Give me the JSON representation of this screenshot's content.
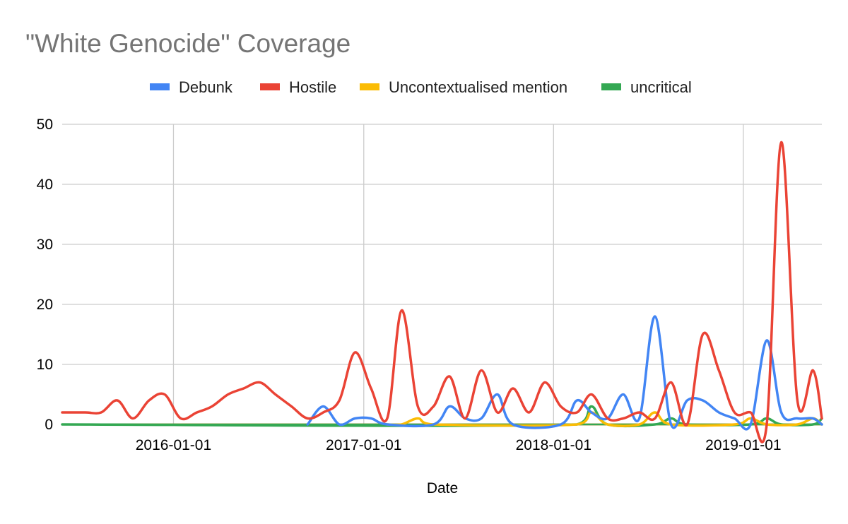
{
  "chart_data": {
    "type": "line",
    "title": "\"White Genocide\" Coverage",
    "xlabel": "Date",
    "ylabel": "",
    "ylim": [
      0,
      50
    ],
    "xlim": [
      "2015-06-01",
      "2019-06-01"
    ],
    "yticks": [
      0,
      10,
      20,
      30,
      40,
      50
    ],
    "xticks": [
      "2016-01-01",
      "2017-01-01",
      "2018-01-01",
      "2019-01-01"
    ],
    "grid": true,
    "legend_position": "top",
    "series": [
      {
        "name": "Debunk",
        "color": "#4285f4",
        "points": [
          [
            "2016-09-15",
            0
          ],
          [
            "2016-10-15",
            3
          ],
          [
            "2016-11-15",
            0
          ],
          [
            "2016-12-15",
            1
          ],
          [
            "2017-01-15",
            1
          ],
          [
            "2017-02-15",
            0
          ],
          [
            "2017-05-15",
            0
          ],
          [
            "2017-06-15",
            3
          ],
          [
            "2017-07-15",
            1
          ],
          [
            "2017-08-15",
            1
          ],
          [
            "2017-09-15",
            5
          ],
          [
            "2017-10-15",
            0
          ],
          [
            "2018-01-15",
            0
          ],
          [
            "2018-02-15",
            4
          ],
          [
            "2018-03-15",
            2
          ],
          [
            "2018-04-15",
            1
          ],
          [
            "2018-05-15",
            5
          ],
          [
            "2018-06-15",
            1
          ],
          [
            "2018-07-15",
            18
          ],
          [
            "2018-08-15",
            0
          ],
          [
            "2018-09-15",
            4
          ],
          [
            "2018-10-15",
            4
          ],
          [
            "2018-11-15",
            2
          ],
          [
            "2018-12-15",
            1
          ],
          [
            "2019-01-15",
            0
          ],
          [
            "2019-02-15",
            14
          ],
          [
            "2019-03-15",
            2
          ],
          [
            "2019-04-15",
            1
          ],
          [
            "2019-05-15",
            1
          ],
          [
            "2019-06-01",
            0
          ]
        ]
      },
      {
        "name": "Hostile",
        "color": "#ea4335",
        "points": [
          [
            "2015-06-01",
            2
          ],
          [
            "2015-07-15",
            2
          ],
          [
            "2015-08-15",
            2
          ],
          [
            "2015-09-15",
            4
          ],
          [
            "2015-10-15",
            1
          ],
          [
            "2015-11-15",
            4
          ],
          [
            "2015-12-15",
            5
          ],
          [
            "2016-01-15",
            1
          ],
          [
            "2016-02-15",
            2
          ],
          [
            "2016-03-15",
            3
          ],
          [
            "2016-04-15",
            5
          ],
          [
            "2016-05-15",
            6
          ],
          [
            "2016-06-15",
            7
          ],
          [
            "2016-07-15",
            5
          ],
          [
            "2016-08-15",
            3
          ],
          [
            "2016-09-15",
            1
          ],
          [
            "2016-10-15",
            2
          ],
          [
            "2016-11-15",
            4
          ],
          [
            "2016-12-15",
            12
          ],
          [
            "2017-01-15",
            6
          ],
          [
            "2017-02-15",
            1
          ],
          [
            "2017-03-15",
            19
          ],
          [
            "2017-04-15",
            3
          ],
          [
            "2017-05-15",
            3
          ],
          [
            "2017-06-15",
            8
          ],
          [
            "2017-07-15",
            1
          ],
          [
            "2017-08-15",
            9
          ],
          [
            "2017-09-15",
            2
          ],
          [
            "2017-10-15",
            6
          ],
          [
            "2017-11-15",
            2
          ],
          [
            "2017-12-15",
            7
          ],
          [
            "2018-01-15",
            3
          ],
          [
            "2018-02-15",
            2
          ],
          [
            "2018-03-15",
            5
          ],
          [
            "2018-04-15",
            1
          ],
          [
            "2018-05-15",
            1
          ],
          [
            "2018-06-15",
            2
          ],
          [
            "2018-07-15",
            1
          ],
          [
            "2018-08-15",
            7
          ],
          [
            "2018-09-15",
            0
          ],
          [
            "2018-10-15",
            15
          ],
          [
            "2018-11-15",
            9
          ],
          [
            "2018-12-15",
            2
          ],
          [
            "2019-01-15",
            2
          ],
          [
            "2019-02-15",
            0
          ],
          [
            "2019-03-15",
            47
          ],
          [
            "2019-04-15",
            4
          ],
          [
            "2019-05-15",
            9
          ],
          [
            "2019-06-01",
            1
          ]
        ]
      },
      {
        "name": "Uncontextualised mention",
        "color": "#fbbc04",
        "points": [
          [
            "2017-02-15",
            0
          ],
          [
            "2017-03-15",
            0
          ],
          [
            "2017-04-15",
            1
          ],
          [
            "2017-05-15",
            0
          ],
          [
            "2018-02-15",
            0
          ],
          [
            "2018-03-15",
            2
          ],
          [
            "2018-04-15",
            0
          ],
          [
            "2018-06-15",
            0
          ],
          [
            "2018-07-15",
            2
          ],
          [
            "2018-08-15",
            0
          ],
          [
            "2018-12-15",
            0
          ],
          [
            "2019-01-15",
            1
          ],
          [
            "2019-02-15",
            0
          ],
          [
            "2019-04-15",
            0
          ],
          [
            "2019-05-15",
            1
          ],
          [
            "2019-06-01",
            0
          ]
        ]
      },
      {
        "name": "uncritical",
        "color": "#34a853",
        "points": [
          [
            "2015-06-01",
            0
          ],
          [
            "2018-02-15",
            0
          ],
          [
            "2018-03-15",
            3
          ],
          [
            "2018-04-15",
            0
          ],
          [
            "2018-07-15",
            0
          ],
          [
            "2018-08-15",
            1
          ],
          [
            "2018-09-15",
            0
          ],
          [
            "2019-01-15",
            0
          ],
          [
            "2019-02-15",
            1
          ],
          [
            "2019-03-15",
            0
          ],
          [
            "2019-05-15",
            0
          ],
          [
            "2019-06-01",
            1
          ]
        ]
      }
    ]
  }
}
